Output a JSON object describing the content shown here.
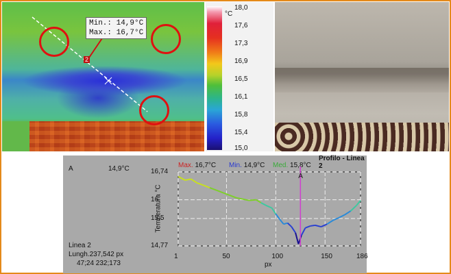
{
  "thermal": {
    "readout_min": "Min.: 14,9°C",
    "readout_max": "Max.: 16,7°C",
    "marker": "2"
  },
  "scale": {
    "unit": "°C",
    "ticks": [
      "18,0",
      "17,6",
      "17,3",
      "16,9",
      "16,5",
      "16,1",
      "15,8",
      "15,4",
      "15,0"
    ]
  },
  "info": {
    "label_a": "A",
    "value_a": "14,9°C",
    "line_name": "Linea 2",
    "length": "Lungh.237,542 px",
    "coords": "47;24 232;173"
  },
  "profile": {
    "title": "Profilo - Linea 2",
    "legend": [
      {
        "label": "Max.",
        "value": "16,7°C",
        "color": "#cc2222"
      },
      {
        "label": "Min.",
        "value": "14,9°C",
        "color": "#2a3ad0"
      },
      {
        "label": "Med.",
        "value": "15,8°C",
        "color": "#3aaa3a"
      }
    ],
    "marker_label": "A"
  },
  "chart_data": {
    "type": "line",
    "xlabel": "px",
    "ylabel": "Temperatura °C",
    "x_ticks": [
      "1",
      "50",
      "100",
      "150",
      "186"
    ],
    "y_ticks": [
      "16,74",
      "16",
      "15,5",
      "14,77"
    ],
    "xlim": [
      1,
      186
    ],
    "ylim": [
      14.77,
      16.74
    ],
    "marker_x": 125,
    "series": [
      {
        "x": [
          1,
          8,
          14,
          20,
          27,
          33,
          40,
          47,
          53,
          60,
          66,
          73,
          80,
          85,
          90,
          96,
          100,
          104,
          108,
          112,
          116,
          120,
          123,
          126,
          130,
          135,
          140,
          146,
          152,
          158,
          164,
          170,
          176,
          182,
          186
        ],
        "y": [
          16.62,
          16.52,
          16.55,
          16.45,
          16.38,
          16.32,
          16.25,
          16.18,
          16.12,
          16.05,
          16.02,
          15.98,
          16.0,
          15.92,
          15.85,
          15.78,
          15.62,
          15.48,
          15.35,
          15.38,
          15.28,
          15.12,
          14.82,
          15.05,
          15.25,
          15.3,
          15.32,
          15.28,
          15.35,
          15.45,
          15.52,
          15.6,
          15.7,
          15.85,
          15.98
        ]
      }
    ]
  }
}
